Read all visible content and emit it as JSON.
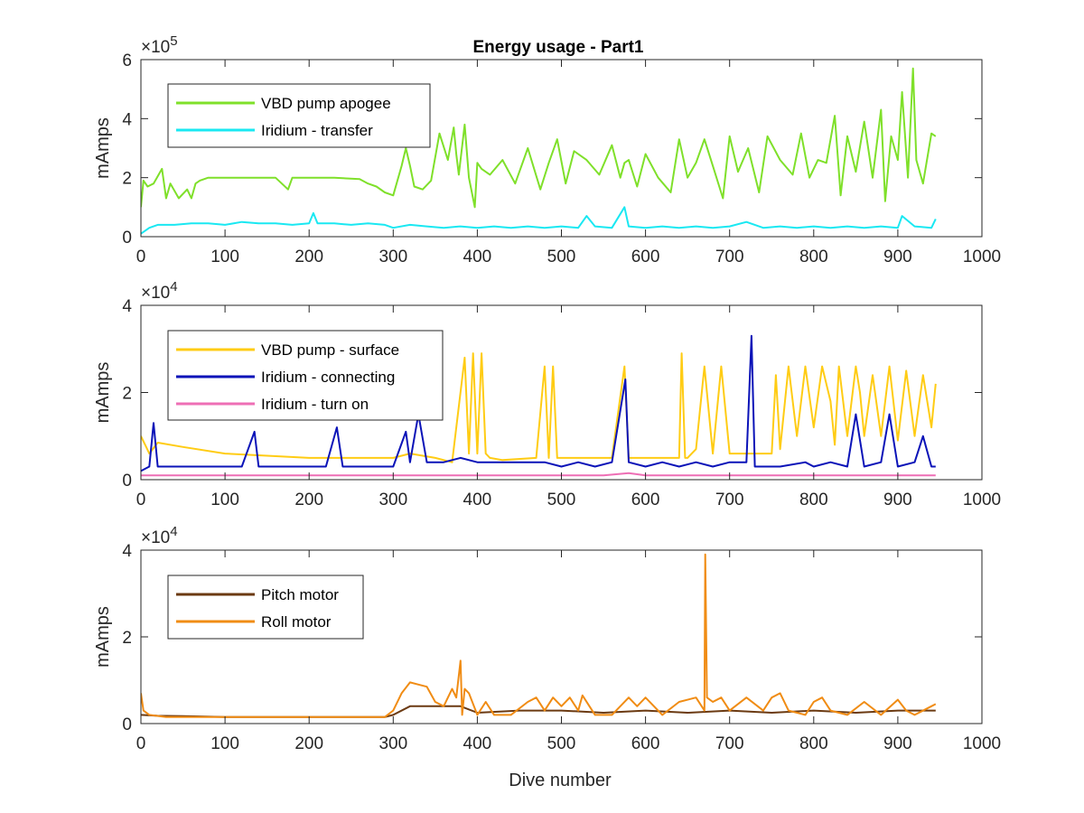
{
  "figure": {
    "title": "Energy usage - Part1",
    "xlabel": "Dive number"
  },
  "colors": {
    "vbd_pump_apogee": "#7fe02a",
    "iridium_transfer": "#1ae8f2",
    "vbd_pump_surface": "#ffcc14",
    "iridium_connecting": "#0b13b8",
    "iridium_turn_on": "#ee6fb5",
    "pitch_motor": "#6b3a12",
    "roll_motor": "#f08c14",
    "axis": "#262626",
    "background": "#ffffff"
  },
  "chart_data": [
    {
      "type": "line",
      "title": "Energy usage - Part1",
      "xlabel": "",
      "ylabel": "mAmps",
      "exponent_base": "10",
      "exponent_power": "5",
      "xlim": [
        0,
        1000
      ],
      "ylim": [
        0,
        6
      ],
      "xticks": [
        "0",
        "100",
        "200",
        "300",
        "400",
        "500",
        "600",
        "700",
        "800",
        "900",
        "1000"
      ],
      "yticks": [
        "0",
        "2",
        "4",
        "6"
      ],
      "legend_position": "top-left",
      "grid": false,
      "series": [
        {
          "name": "VBD pump apogee",
          "color": "#7fe02a",
          "x": [
            0,
            3,
            8,
            15,
            25,
            30,
            35,
            45,
            55,
            60,
            65,
            70,
            80,
            100,
            130,
            160,
            175,
            180,
            185,
            200,
            230,
            260,
            270,
            280,
            290,
            300,
            310,
            315,
            320,
            325,
            335,
            345,
            355,
            365,
            372,
            375,
            378,
            385,
            390,
            397,
            400,
            405,
            415,
            430,
            445,
            460,
            475,
            485,
            495,
            505,
            515,
            530,
            545,
            560,
            570,
            575,
            580,
            590,
            600,
            615,
            630,
            640,
            650,
            660,
            670,
            680,
            692,
            700,
            710,
            722,
            735,
            745,
            760,
            775,
            785,
            795,
            805,
            815,
            825,
            832,
            840,
            850,
            860,
            870,
            880,
            885,
            892,
            900,
            905,
            912,
            918,
            922,
            930,
            940,
            945
          ],
          "values": [
            1.0,
            1.9,
            1.7,
            1.8,
            2.3,
            1.3,
            1.8,
            1.3,
            1.6,
            1.3,
            1.8,
            1.9,
            2.0,
            2.0,
            2.0,
            2.0,
            1.6,
            2.0,
            2.0,
            2.0,
            2.0,
            1.95,
            1.8,
            1.7,
            1.5,
            1.4,
            2.4,
            3.0,
            2.4,
            1.7,
            1.6,
            1.9,
            3.5,
            2.6,
            3.7,
            2.8,
            2.1,
            3.8,
            2.0,
            1.0,
            2.5,
            2.3,
            2.1,
            2.6,
            1.8,
            3.0,
            1.6,
            2.5,
            3.3,
            1.8,
            2.9,
            2.6,
            2.1,
            3.1,
            2.0,
            2.5,
            2.6,
            1.7,
            2.8,
            2.0,
            1.5,
            3.3,
            2.0,
            2.5,
            3.3,
            2.4,
            1.3,
            3.4,
            2.2,
            3.0,
            1.5,
            3.4,
            2.6,
            2.1,
            3.5,
            2.0,
            2.6,
            2.5,
            4.1,
            1.4,
            3.4,
            2.2,
            3.9,
            2.0,
            4.3,
            1.2,
            3.4,
            2.6,
            4.9,
            2.0,
            5.7,
            2.6,
            1.8,
            3.5,
            3.4
          ]
        },
        {
          "name": "Iridium - transfer",
          "color": "#1ae8f2",
          "x": [
            0,
            10,
            20,
            40,
            60,
            80,
            100,
            120,
            140,
            160,
            180,
            200,
            205,
            210,
            230,
            250,
            270,
            290,
            300,
            320,
            340,
            360,
            380,
            400,
            420,
            440,
            460,
            480,
            500,
            520,
            530,
            540,
            560,
            575,
            580,
            600,
            620,
            640,
            660,
            680,
            700,
            720,
            740,
            760,
            780,
            800,
            820,
            840,
            860,
            880,
            900,
            905,
            920,
            940,
            945
          ],
          "values": [
            0.1,
            0.3,
            0.4,
            0.4,
            0.45,
            0.45,
            0.4,
            0.5,
            0.45,
            0.45,
            0.4,
            0.45,
            0.8,
            0.45,
            0.45,
            0.4,
            0.45,
            0.4,
            0.3,
            0.4,
            0.35,
            0.3,
            0.35,
            0.3,
            0.35,
            0.3,
            0.35,
            0.3,
            0.35,
            0.3,
            0.7,
            0.35,
            0.3,
            1.0,
            0.35,
            0.3,
            0.35,
            0.3,
            0.35,
            0.3,
            0.35,
            0.5,
            0.3,
            0.35,
            0.3,
            0.35,
            0.3,
            0.35,
            0.3,
            0.35,
            0.3,
            0.7,
            0.35,
            0.3,
            0.6
          ]
        }
      ]
    },
    {
      "type": "line",
      "xlabel": "",
      "ylabel": "mAmps",
      "exponent_base": "10",
      "exponent_power": "4",
      "xlim": [
        0,
        1000
      ],
      "ylim": [
        0,
        4
      ],
      "xticks": [
        "0",
        "100",
        "200",
        "300",
        "400",
        "500",
        "600",
        "700",
        "800",
        "900",
        "1000"
      ],
      "yticks": [
        "0",
        "2",
        "4"
      ],
      "legend_position": "top-left",
      "grid": false,
      "series": [
        {
          "name": "VBD pump - surface",
          "color": "#ffcc14",
          "x": [
            0,
            5,
            10,
            20,
            50,
            100,
            150,
            200,
            250,
            300,
            320,
            350,
            370,
            385,
            390,
            395,
            400,
            405,
            410,
            415,
            430,
            470,
            480,
            485,
            490,
            495,
            500,
            560,
            575,
            580,
            590,
            600,
            640,
            643,
            647,
            650,
            660,
            670,
            680,
            690,
            700,
            720,
            750,
            755,
            760,
            770,
            780,
            790,
            800,
            810,
            820,
            825,
            830,
            840,
            850,
            855,
            860,
            870,
            880,
            890,
            900,
            910,
            920,
            930,
            940,
            945
          ],
          "values": [
            1.0,
            0.8,
            0.6,
            0.85,
            0.75,
            0.6,
            0.55,
            0.5,
            0.5,
            0.5,
            0.6,
            0.5,
            0.4,
            2.8,
            0.6,
            2.9,
            0.6,
            2.9,
            0.6,
            0.5,
            0.45,
            0.5,
            2.6,
            0.5,
            2.6,
            0.5,
            0.5,
            0.5,
            2.6,
            0.5,
            0.5,
            0.5,
            0.5,
            2.9,
            0.5,
            0.5,
            0.7,
            2.6,
            0.6,
            2.6,
            0.6,
            0.6,
            0.6,
            2.4,
            0.7,
            2.6,
            1.0,
            2.6,
            1.2,
            2.6,
            1.8,
            0.8,
            2.6,
            1.0,
            2.6,
            2.0,
            1.0,
            2.4,
            1.0,
            2.6,
            0.9,
            2.5,
            1.0,
            2.4,
            1.2,
            2.2
          ]
        },
        {
          "name": "Iridium - connecting",
          "color": "#0b13b8",
          "x": [
            0,
            10,
            15,
            20,
            40,
            60,
            80,
            100,
            120,
            135,
            140,
            160,
            180,
            200,
            220,
            233,
            240,
            260,
            280,
            300,
            315,
            320,
            330,
            340,
            360,
            380,
            400,
            420,
            440,
            460,
            480,
            500,
            520,
            540,
            560,
            576,
            580,
            600,
            620,
            640,
            660,
            680,
            700,
            720,
            726,
            730,
            760,
            790,
            800,
            820,
            840,
            850,
            860,
            880,
            890,
            900,
            920,
            930,
            940,
            945
          ],
          "values": [
            0.2,
            0.3,
            1.3,
            0.3,
            0.3,
            0.3,
            0.3,
            0.3,
            0.3,
            1.1,
            0.3,
            0.3,
            0.3,
            0.3,
            0.3,
            1.2,
            0.3,
            0.3,
            0.3,
            0.3,
            1.1,
            0.4,
            1.5,
            0.4,
            0.4,
            0.5,
            0.4,
            0.4,
            0.4,
            0.4,
            0.4,
            0.3,
            0.4,
            0.3,
            0.4,
            2.3,
            0.4,
            0.3,
            0.4,
            0.3,
            0.4,
            0.3,
            0.4,
            0.4,
            3.3,
            0.3,
            0.3,
            0.4,
            0.3,
            0.4,
            0.3,
            1.5,
            0.3,
            0.4,
            1.5,
            0.3,
            0.4,
            1.0,
            0.3,
            0.3
          ]
        },
        {
          "name": "Iridium - turn on",
          "color": "#ee6fb5",
          "x": [
            0,
            50,
            100,
            150,
            200,
            250,
            300,
            350,
            400,
            450,
            500,
            550,
            580,
            600,
            650,
            700,
            750,
            800,
            850,
            900,
            945
          ],
          "values": [
            0.1,
            0.1,
            0.1,
            0.1,
            0.1,
            0.1,
            0.1,
            0.1,
            0.1,
            0.1,
            0.1,
            0.1,
            0.15,
            0.1,
            0.1,
            0.1,
            0.1,
            0.1,
            0.1,
            0.1,
            0.1
          ]
        }
      ]
    },
    {
      "type": "line",
      "xlabel": "Dive number",
      "ylabel": "mAmps",
      "exponent_base": "10",
      "exponent_power": "4",
      "xlim": [
        0,
        1000
      ],
      "ylim": [
        0,
        4
      ],
      "xticks": [
        "0",
        "100",
        "200",
        "300",
        "400",
        "500",
        "600",
        "700",
        "800",
        "900",
        "1000"
      ],
      "yticks": [
        "0",
        "2",
        "4"
      ],
      "legend_position": "top-left",
      "grid": false,
      "series": [
        {
          "name": "Pitch motor",
          "color": "#6b3a12",
          "x": [
            0,
            20,
            50,
            100,
            150,
            200,
            250,
            290,
            300,
            320,
            350,
            380,
            400,
            450,
            500,
            550,
            600,
            650,
            700,
            750,
            800,
            850,
            900,
            945
          ],
          "values": [
            0.2,
            0.18,
            0.17,
            0.15,
            0.15,
            0.15,
            0.15,
            0.15,
            0.2,
            0.4,
            0.4,
            0.4,
            0.25,
            0.3,
            0.3,
            0.25,
            0.3,
            0.25,
            0.3,
            0.25,
            0.3,
            0.25,
            0.3,
            0.3
          ]
        },
        {
          "name": "Roll motor",
          "color": "#f08c14",
          "x": [
            0,
            3,
            10,
            30,
            100,
            200,
            290,
            300,
            310,
            320,
            330,
            340,
            350,
            360,
            370,
            375,
            380,
            382,
            385,
            390,
            400,
            410,
            420,
            440,
            460,
            470,
            480,
            490,
            500,
            510,
            520,
            525,
            540,
            560,
            580,
            590,
            600,
            620,
            640,
            660,
            670,
            671,
            673,
            680,
            690,
            700,
            720,
            740,
            750,
            760,
            770,
            790,
            800,
            810,
            820,
            840,
            860,
            880,
            900,
            910,
            920,
            940,
            945
          ],
          "values": [
            0.7,
            0.3,
            0.2,
            0.15,
            0.15,
            0.15,
            0.15,
            0.3,
            0.7,
            0.95,
            0.9,
            0.85,
            0.5,
            0.4,
            0.8,
            0.6,
            1.45,
            0.2,
            0.8,
            0.7,
            0.2,
            0.5,
            0.2,
            0.2,
            0.5,
            0.6,
            0.3,
            0.6,
            0.4,
            0.6,
            0.3,
            0.65,
            0.2,
            0.2,
            0.6,
            0.4,
            0.6,
            0.2,
            0.5,
            0.6,
            0.3,
            3.9,
            0.6,
            0.5,
            0.6,
            0.3,
            0.6,
            0.3,
            0.6,
            0.7,
            0.3,
            0.2,
            0.5,
            0.6,
            0.3,
            0.2,
            0.5,
            0.2,
            0.55,
            0.3,
            0.2,
            0.4,
            0.45
          ]
        }
      ]
    }
  ]
}
